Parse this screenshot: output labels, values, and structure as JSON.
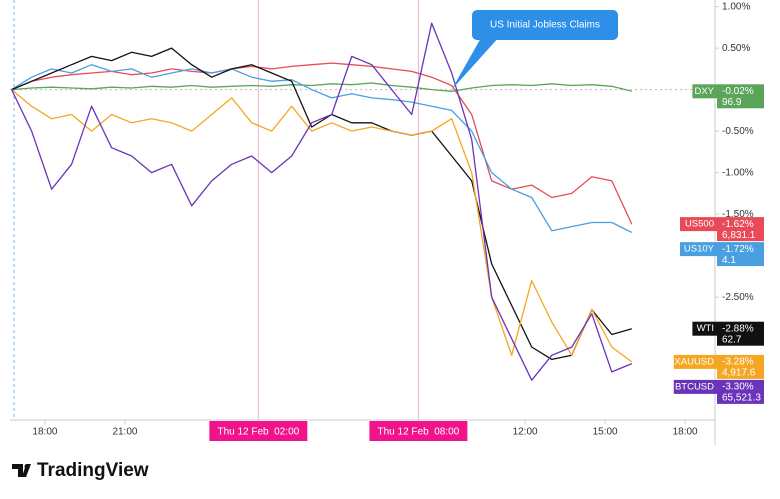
{
  "chart_data": {
    "type": "line",
    "annotation": "US Initial Jobless Claims",
    "brand": "TradingView",
    "x": [
      16.75,
      17.5,
      18.25,
      19,
      19.75,
      20.5,
      21.25,
      22,
      22.75,
      23.5,
      24.25,
      25,
      25.75,
      26.5,
      27.25,
      28,
      28.75,
      29.5,
      30.25,
      31,
      31.75,
      32.5,
      33.25,
      34,
      34.75,
      35.5,
      36.25,
      37,
      37.75,
      38.5,
      39.25,
      40
    ],
    "xlim": [
      16.69,
      43.12
    ],
    "xticks": [
      {
        "value": 18,
        "label": "18:00"
      },
      {
        "value": 21,
        "label": "21:00"
      },
      {
        "value": 36,
        "label": "12:00"
      },
      {
        "value": 39,
        "label": "15:00"
      },
      {
        "value": 42,
        "label": "18:00"
      }
    ],
    "crosshairs": [
      {
        "value": 26,
        "label": "Thu 12 Feb  02:00"
      },
      {
        "value": 32,
        "label": "Thu 12 Feb  08:00"
      }
    ],
    "ylim": [
      -3.98,
      1.08
    ],
    "yticks": [
      {
        "value": 1,
        "label": "1.00%"
      },
      {
        "value": 0.5,
        "label": "0.50%"
      },
      {
        "value": -0.5,
        "label": "-0.50%"
      },
      {
        "value": -1,
        "label": "-1.00%"
      },
      {
        "value": -1.5,
        "label": "-1.50%"
      },
      {
        "value": -2.5,
        "label": "-2.50%"
      }
    ],
    "series": [
      {
        "name": "DXY",
        "color": "#5aa55a",
        "last_label": "-0.02%",
        "price_label": "96.9",
        "values": [
          0,
          0.02,
          0.03,
          0.02,
          0.01,
          0.03,
          0.02,
          0.04,
          0.03,
          0.05,
          0.03,
          0.04,
          0.05,
          0.04,
          0.06,
          0.05,
          0.07,
          0.06,
          0.08,
          0.05,
          0.03,
          0,
          -0.02,
          0.02,
          0.05,
          0.06,
          0.05,
          0.07,
          0.05,
          0.06,
          0.04,
          -0.02
        ]
      },
      {
        "name": "US500",
        "color": "#e84a57",
        "last_label": "-1.62%",
        "price_label": "6,831.1",
        "values": [
          0,
          0.1,
          0.15,
          0.18,
          0.2,
          0.22,
          0.18,
          0.2,
          0.25,
          0.22,
          0.2,
          0.25,
          0.28,
          0.25,
          0.28,
          0.3,
          0.32,
          0.3,
          0.28,
          0.25,
          0.22,
          0.15,
          0.05,
          -0.3,
          -1.1,
          -1.2,
          -1.15,
          -1.3,
          -1.25,
          -1.05,
          -1.1,
          -1.62
        ]
      },
      {
        "name": "US10Y",
        "color": "#4a9fe0",
        "last_label": "-1.72%",
        "price_label": "4.1",
        "values": [
          0,
          0.15,
          0.25,
          0.2,
          0.3,
          0.22,
          0.25,
          0.15,
          0.2,
          0.25,
          0.2,
          0.25,
          0.15,
          0.1,
          0.12,
          0,
          -0.1,
          -0.05,
          -0.1,
          -0.12,
          -0.15,
          -0.2,
          -0.25,
          -0.5,
          -1,
          -1.2,
          -1.3,
          -1.7,
          -1.65,
          -1.6,
          -1.6,
          -1.72
        ]
      },
      {
        "name": "WTI",
        "color": "#111111",
        "last_label": "-2.88%",
        "price_label": "62.7",
        "values": [
          0,
          0.1,
          0.2,
          0.3,
          0.4,
          0.35,
          0.45,
          0.4,
          0.5,
          0.3,
          0.15,
          0.25,
          0.3,
          0.2,
          0.1,
          -0.45,
          -0.3,
          -0.4,
          -0.4,
          -0.5,
          -0.55,
          -0.5,
          -0.8,
          -1.1,
          -2.1,
          -2.6,
          -3.1,
          -3.25,
          -3.2,
          -2.65,
          -2.95,
          -2.88
        ]
      },
      {
        "name": "XAUUSD",
        "color": "#f5a623",
        "last_label": "-3.28%",
        "price_label": "4,917.6",
        "values": [
          0,
          -0.2,
          -0.35,
          -0.3,
          -0.5,
          -0.3,
          -0.4,
          -0.35,
          -0.4,
          -0.5,
          -0.3,
          -0.1,
          -0.4,
          -0.5,
          -0.2,
          -0.5,
          -0.4,
          -0.5,
          -0.45,
          -0.5,
          -0.55,
          -0.5,
          -0.35,
          -1,
          -2.5,
          -3.2,
          -2.3,
          -2.8,
          -3.2,
          -2.65,
          -3.1,
          -3.28
        ]
      },
      {
        "name": "BTCUSD",
        "color": "#6a33b8",
        "last_label": "-3.30%",
        "price_label": "65,521.3",
        "values": [
          0,
          -0.5,
          -1.2,
          -0.9,
          -0.2,
          -0.7,
          -0.8,
          -1,
          -0.9,
          -1.4,
          -1.1,
          -0.9,
          -0.8,
          -1,
          -0.8,
          -0.4,
          -0.3,
          0.4,
          0.3,
          0,
          -0.3,
          0.8,
          0.2,
          -0.6,
          -2.5,
          -3,
          -3.5,
          -3.2,
          -3.1,
          -2.7,
          -3.4,
          -3.3
        ]
      }
    ]
  }
}
